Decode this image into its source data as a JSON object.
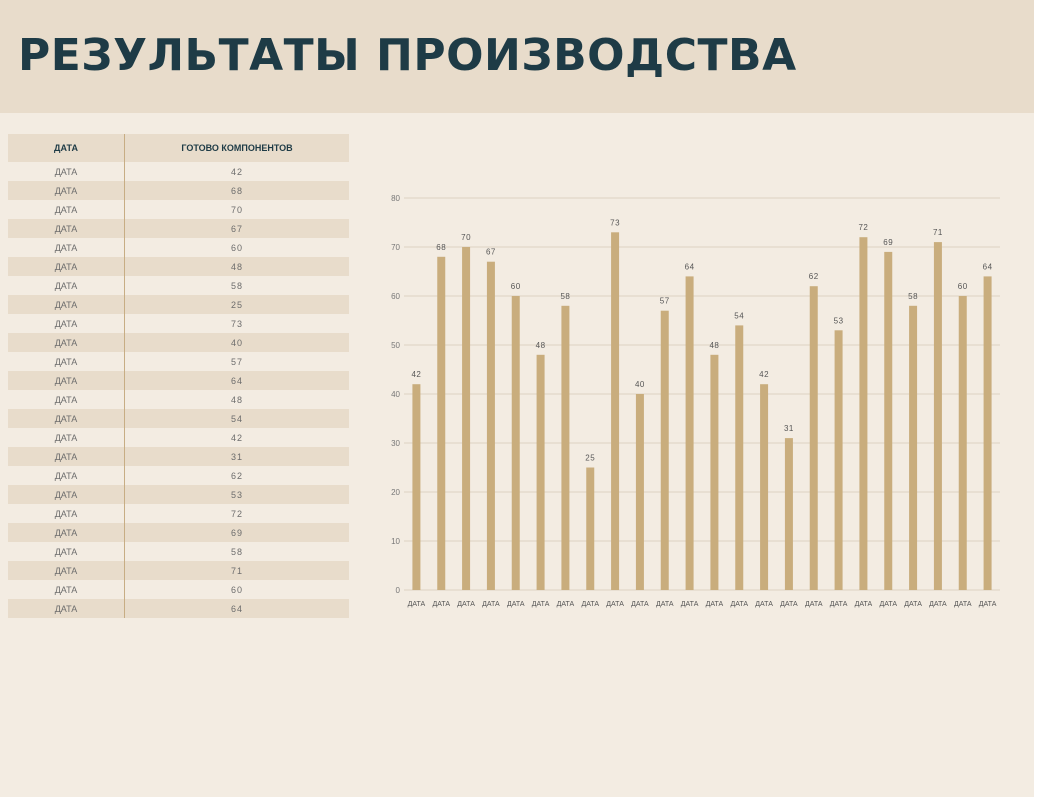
{
  "title": "РЕЗУЛЬТАТЫ ПРОИЗВОДСТВА",
  "table": {
    "headers": [
      "ДАТА",
      "ГОТОВО КОМПОНЕНТОВ"
    ],
    "rows": [
      [
        "ДАТА",
        "42"
      ],
      [
        "ДАТА",
        "68"
      ],
      [
        "ДАТА",
        "70"
      ],
      [
        "ДАТА",
        "67"
      ],
      [
        "ДАТА",
        "60"
      ],
      [
        "ДАТА",
        "48"
      ],
      [
        "ДАТА",
        "58"
      ],
      [
        "ДАТА",
        "25"
      ],
      [
        "ДАТА",
        "73"
      ],
      [
        "ДАТА",
        "40"
      ],
      [
        "ДАТА",
        "57"
      ],
      [
        "ДАТА",
        "64"
      ],
      [
        "ДАТА",
        "48"
      ],
      [
        "ДАТА",
        "54"
      ],
      [
        "ДАТА",
        "42"
      ],
      [
        "ДАТА",
        "31"
      ],
      [
        "ДАТА",
        "62"
      ],
      [
        "ДАТА",
        "53"
      ],
      [
        "ДАТА",
        "72"
      ],
      [
        "ДАТА",
        "69"
      ],
      [
        "ДАТА",
        "58"
      ],
      [
        "ДАТА",
        "71"
      ],
      [
        "ДАТА",
        "60"
      ],
      [
        "ДАТА",
        "64"
      ]
    ]
  },
  "colors": {
    "banner": "#e8dccb",
    "background": "#f3ece2",
    "title": "#1e3b46",
    "bar": "#c9ad7d",
    "grid": "#dcd2c2"
  },
  "chart_data": {
    "type": "bar",
    "categories": [
      "ДАТА",
      "ДАТА",
      "ДАТА",
      "ДАТА",
      "ДАТА",
      "ДАТА",
      "ДАТА",
      "ДАТА",
      "ДАТА",
      "ДАТА",
      "ДАТА",
      "ДАТА",
      "ДАТА",
      "ДАТА",
      "ДАТА",
      "ДАТА",
      "ДАТА",
      "ДАТА",
      "ДАТА",
      "ДАТА",
      "ДАТА",
      "ДАТА",
      "ДАТА",
      "ДАТА"
    ],
    "values": [
      42,
      68,
      70,
      67,
      60,
      48,
      58,
      25,
      73,
      40,
      57,
      64,
      48,
      54,
      42,
      31,
      62,
      53,
      72,
      69,
      58,
      71,
      60,
      64
    ],
    "ylim": [
      0,
      80
    ],
    "yticks": [
      0,
      10,
      20,
      30,
      40,
      50,
      60,
      70,
      80
    ],
    "grid": true,
    "data_labels": true,
    "legend": "none"
  }
}
